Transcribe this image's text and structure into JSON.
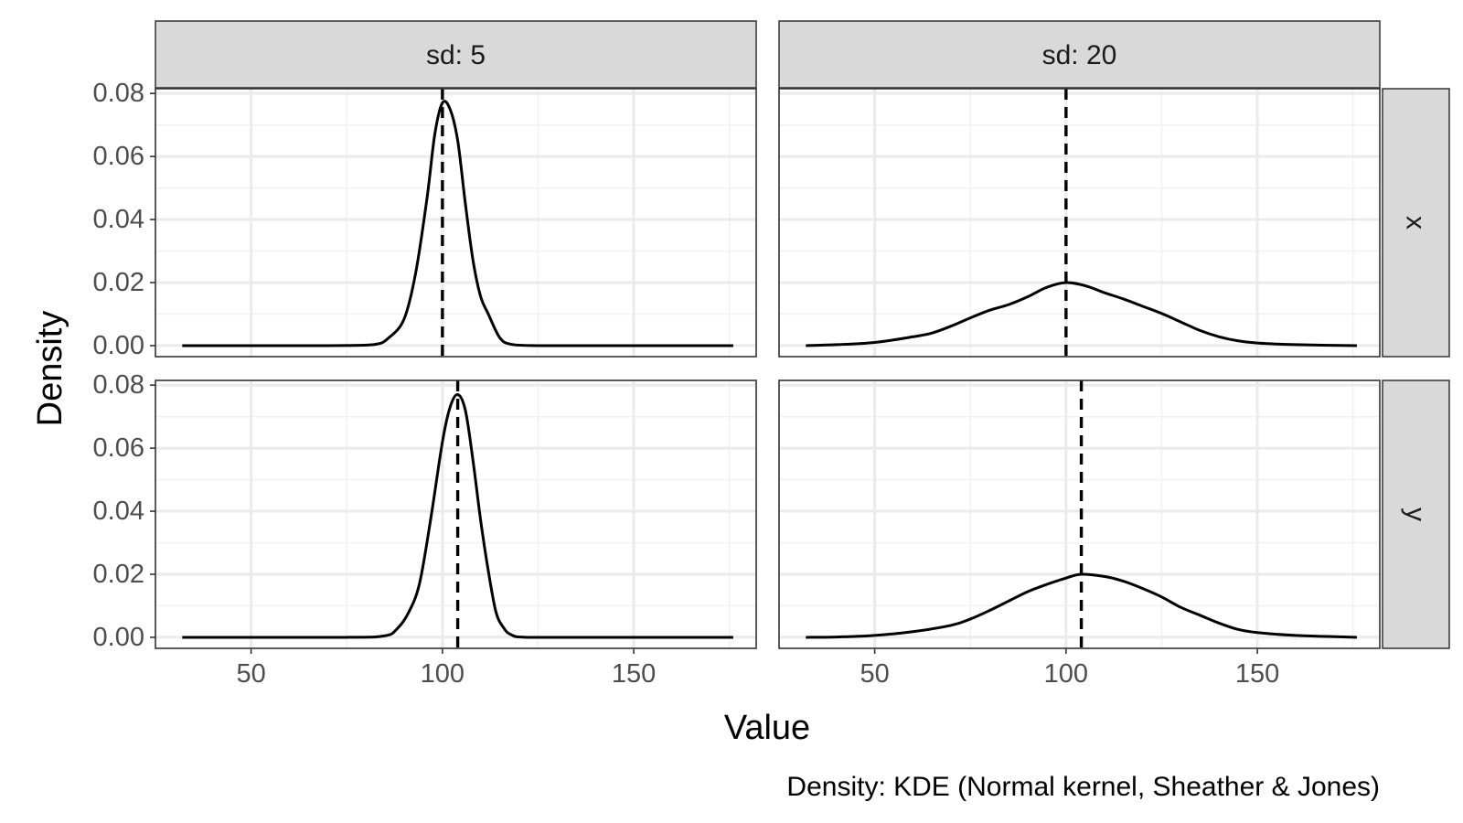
{
  "chart_data": {
    "type": "line",
    "xlabel": "Value",
    "ylabel": "Density",
    "caption": "Density: KDE (Normal kernel, Sheather & Jones)",
    "xlim": [
      25,
      182
    ],
    "ylim": [
      -0.0035,
      0.0815
    ],
    "x_ticks": [
      50,
      100,
      150
    ],
    "x_tick_labels": [
      "50",
      "100",
      "150"
    ],
    "y_ticks": [
      0,
      0.02,
      0.04,
      0.06,
      0.08
    ],
    "y_tick_labels": [
      "0.00",
      "0.02",
      "0.04",
      "0.06",
      "0.08"
    ],
    "col_facets": [
      {
        "label": "sd: 5"
      },
      {
        "label": "sd: 20"
      }
    ],
    "row_facets": [
      {
        "label": "x"
      },
      {
        "label": "y"
      }
    ],
    "panels": [
      {
        "row": 0,
        "col": 0,
        "mean": 100,
        "x": [
          32,
          70,
          82,
          86,
          90,
          93,
          96,
          98,
          100,
          102,
          104,
          106,
          108,
          110,
          112,
          115,
          118,
          125,
          140,
          176
        ],
        "y": [
          0,
          0,
          0.0003,
          0.0025,
          0.0085,
          0.023,
          0.047,
          0.067,
          0.077,
          0.075,
          0.065,
          0.045,
          0.027,
          0.0155,
          0.01,
          0.0025,
          0.0004,
          0,
          0,
          0
        ]
      },
      {
        "row": 0,
        "col": 1,
        "mean": 100,
        "x": [
          32,
          40,
          50,
          60,
          65,
          70,
          75,
          80,
          85,
          90,
          95,
          100,
          105,
          110,
          115,
          120,
          125,
          130,
          135,
          140,
          145,
          150,
          160,
          176
        ],
        "y": [
          0,
          0.0003,
          0.001,
          0.0028,
          0.004,
          0.0062,
          0.0088,
          0.0112,
          0.013,
          0.0155,
          0.0185,
          0.02,
          0.019,
          0.0168,
          0.0148,
          0.0125,
          0.0102,
          0.0075,
          0.0048,
          0.0028,
          0.0015,
          0.0008,
          0.0003,
          0
        ]
      },
      {
        "row": 1,
        "col": 0,
        "mean": 104,
        "x": [
          32,
          75,
          85,
          88,
          91,
          94,
          97,
          100,
          102,
          104,
          106,
          108,
          110,
          112,
          114,
          116,
          118,
          122,
          140,
          176
        ],
        "y": [
          0,
          0,
          0.0005,
          0.0025,
          0.0075,
          0.017,
          0.038,
          0.062,
          0.073,
          0.077,
          0.072,
          0.056,
          0.037,
          0.021,
          0.008,
          0.003,
          0.0008,
          0,
          0,
          0
        ]
      },
      {
        "row": 1,
        "col": 1,
        "mean": 104,
        "x": [
          32,
          40,
          50,
          60,
          70,
          75,
          80,
          85,
          90,
          95,
          100,
          104,
          110,
          115,
          120,
          125,
          130,
          135,
          140,
          145,
          150,
          160,
          176
        ],
        "y": [
          0,
          0.0001,
          0.0006,
          0.0018,
          0.0038,
          0.0058,
          0.0085,
          0.0115,
          0.0145,
          0.0168,
          0.0188,
          0.02,
          0.0193,
          0.0178,
          0.0155,
          0.0128,
          0.0095,
          0.007,
          0.0045,
          0.0025,
          0.0015,
          0.0006,
          0
        ]
      }
    ]
  }
}
